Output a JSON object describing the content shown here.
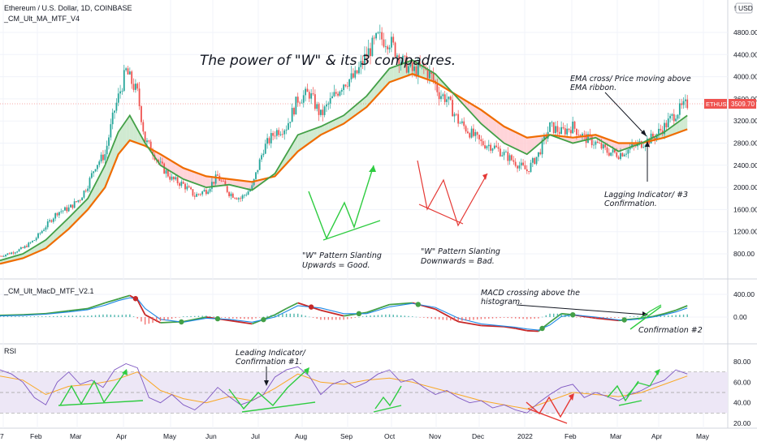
{
  "chart_data": [
    {
      "type": "candlestick",
      "pane": "price",
      "symbol_header": "Ethereum / U.S. Dollar, 1D, COINBASE",
      "indicator_label": "_CM_Ult_MA_MTF_V4",
      "title": "The power of \"W\" & its 3 compadres.",
      "yticks": [
        "800.00",
        "1200.00",
        "1600.00",
        "2000.00",
        "2400.00",
        "2800.00",
        "3200.00",
        "3600.00",
        "4000.00",
        "4400.00",
        "4800.00"
      ],
      "ylim": [
        500,
        5000
      ],
      "yaxis_top_label": "5",
      "currency_badge": "USD",
      "last_price": "3509.70",
      "price_tag_label": "ETHUSD",
      "series": [
        {
          "name": "",
          "kind": "price",
          "color": "#26a69a",
          "x": [
            0,
            6,
            12,
            18,
            24,
            30,
            36,
            42,
            46,
            50,
            55,
            60,
            66,
            72,
            76,
            80,
            84,
            90,
            96,
            102,
            108,
            114,
            120,
            126,
            132,
            138,
            144,
            150,
            156,
            162,
            168,
            174,
            180,
            186,
            192,
            198,
            204,
            210,
            216,
            222,
            226,
            230,
            234,
            240,
            246,
            252,
            258,
            264,
            270,
            276,
            282,
            288,
            294,
            300,
            306,
            312,
            318,
            324,
            330,
            336,
            342,
            348,
            354,
            360
          ],
          "y": [
            760,
            820,
            900,
            1050,
            1300,
            1550,
            1620,
            1800,
            2050,
            2400,
            2600,
            3400,
            4100,
            3700,
            2850,
            2650,
            2400,
            2150,
            2050,
            1850,
            1950,
            2200,
            1900,
            1800,
            2000,
            2700,
            3000,
            3100,
            3600,
            3700,
            3300,
            3600,
            3900,
            4000,
            4400,
            4700,
            4650,
            4300,
            4100,
            4150,
            4000,
            3700,
            3600,
            3200,
            3000,
            2800,
            2750,
            2600,
            2450,
            2300,
            2600,
            3100,
            3000,
            3100,
            2900,
            2800,
            2650,
            2600,
            2700,
            2800,
            2900,
            3100,
            3350,
            3509.7
          ]
        },
        {
          "name": "",
          "kind": "fast-ma",
          "color": "#43a047",
          "x": [
            0,
            12,
            24,
            36,
            46,
            55,
            62,
            68,
            76,
            84,
            96,
            108,
            120,
            132,
            144,
            156,
            168,
            180,
            192,
            204,
            216,
            228,
            240,
            252,
            264,
            276,
            288,
            300,
            312,
            324,
            336,
            348,
            360
          ],
          "y": [
            680,
            800,
            1050,
            1450,
            1800,
            2400,
            3000,
            3300,
            2800,
            2400,
            2150,
            2000,
            2050,
            1950,
            2250,
            2950,
            3100,
            3300,
            3650,
            4150,
            4300,
            4050,
            3600,
            3150,
            2800,
            2600,
            2950,
            2800,
            2900,
            2650,
            2800,
            3000,
            3300
          ]
        },
        {
          "name": "",
          "kind": "slow-ma",
          "color": "#ef6c00",
          "x": [
            0,
            12,
            24,
            36,
            46,
            55,
            62,
            68,
            76,
            84,
            96,
            108,
            120,
            132,
            144,
            156,
            168,
            180,
            192,
            204,
            216,
            228,
            240,
            252,
            264,
            276,
            288,
            300,
            312,
            324,
            336,
            348,
            360
          ],
          "y": [
            620,
            720,
            900,
            1250,
            1600,
            2000,
            2600,
            2850,
            2750,
            2600,
            2350,
            2200,
            2150,
            2100,
            2200,
            2650,
            2950,
            3150,
            3450,
            3900,
            4050,
            3900,
            3650,
            3400,
            3100,
            2900,
            2950,
            2900,
            2950,
            2800,
            2800,
            2900,
            3050
          ]
        }
      ]
    },
    {
      "type": "line",
      "pane": "macd",
      "indicator_label": "_CM_Ult_MacD_MTF_V2.1",
      "yticks": [
        "400.00",
        "0.00"
      ],
      "ylim": [
        -340,
        480
      ],
      "series": [
        {
          "name": "",
          "kind": "macd",
          "x": [
            0,
            12,
            24,
            36,
            46,
            55,
            62,
            68,
            72,
            76,
            84,
            96,
            108,
            120,
            132,
            144,
            150,
            156,
            168,
            180,
            192,
            204,
            216,
            228,
            240,
            252,
            264,
            270,
            276,
            282,
            288,
            294,
            300,
            312,
            324,
            330,
            336,
            342,
            348,
            354,
            360
          ],
          "y": [
            30,
            40,
            60,
            110,
            150,
            250,
            320,
            380,
            300,
            40,
            -100,
            -80,
            0,
            -60,
            -120,
            40,
            150,
            250,
            120,
            20,
            80,
            220,
            250,
            140,
            -80,
            -150,
            -170,
            -200,
            -240,
            -250,
            -90,
            60,
            40,
            -20,
            -60,
            -40,
            -20,
            10,
            60,
            120,
            200
          ]
        },
        {
          "name": "",
          "kind": "signal",
          "x": [
            0,
            12,
            24,
            36,
            46,
            55,
            62,
            68,
            72,
            76,
            84,
            96,
            108,
            120,
            132,
            144,
            150,
            156,
            168,
            180,
            192,
            204,
            216,
            228,
            240,
            252,
            264,
            270,
            276,
            282,
            288,
            294,
            300,
            312,
            324,
            330,
            336,
            342,
            348,
            354,
            360
          ],
          "y": [
            20,
            30,
            50,
            90,
            130,
            210,
            290,
            340,
            320,
            150,
            -40,
            -90,
            -20,
            -40,
            -90,
            0,
            100,
            200,
            160,
            60,
            60,
            180,
            240,
            170,
            -20,
            -120,
            -160,
            -180,
            -210,
            -230,
            -140,
            10,
            40,
            0,
            -50,
            -50,
            -30,
            0,
            40,
            90,
            160
          ]
        }
      ]
    },
    {
      "type": "line",
      "pane": "rsi",
      "indicator_label": "RSI",
      "yticks": [
        "80.00",
        "60.00",
        "40.00",
        "20.00"
      ],
      "ylim": [
        14,
        92
      ],
      "bands": [
        30,
        50,
        70
      ],
      "series": [
        {
          "name": "",
          "kind": "rsi",
          "x": [
            0,
            6,
            12,
            18,
            24,
            30,
            36,
            42,
            48,
            54,
            60,
            66,
            72,
            78,
            84,
            90,
            96,
            102,
            108,
            114,
            120,
            126,
            132,
            138,
            144,
            150,
            156,
            162,
            168,
            174,
            180,
            186,
            192,
            198,
            204,
            210,
            216,
            222,
            228,
            234,
            240,
            246,
            252,
            258,
            264,
            270,
            276,
            282,
            288,
            294,
            300,
            306,
            312,
            318,
            324,
            330,
            336,
            342,
            348,
            354,
            360
          ],
          "y": [
            72,
            68,
            60,
            45,
            38,
            60,
            70,
            58,
            62,
            55,
            72,
            78,
            74,
            45,
            40,
            48,
            38,
            33,
            42,
            55,
            46,
            38,
            42,
            48,
            65,
            72,
            75,
            66,
            48,
            58,
            62,
            55,
            60,
            68,
            72,
            60,
            63,
            55,
            48,
            52,
            45,
            40,
            42,
            35,
            38,
            33,
            30,
            40,
            48,
            55,
            58,
            45,
            50,
            46,
            42,
            48,
            52,
            58,
            62,
            72,
            68
          ]
        },
        {
          "name": "",
          "kind": "rsi-ma",
          "x": [
            0,
            12,
            24,
            36,
            48,
            60,
            72,
            84,
            96,
            108,
            120,
            132,
            144,
            156,
            168,
            180,
            192,
            204,
            216,
            228,
            240,
            252,
            264,
            276,
            288,
            300,
            312,
            324,
            336,
            348,
            360
          ],
          "y": [
            66,
            62,
            48,
            56,
            58,
            62,
            70,
            52,
            44,
            40,
            46,
            42,
            54,
            68,
            60,
            58,
            62,
            64,
            60,
            54,
            48,
            42,
            38,
            34,
            42,
            50,
            48,
            46,
            50,
            58,
            66
          ]
        }
      ]
    }
  ],
  "x_axis": {
    "tick_labels": [
      "7",
      "Feb",
      "Mar",
      "Apr",
      "May",
      "Jun",
      "Jul",
      "Aug",
      "Sep",
      "Oct",
      "Nov",
      "Dec",
      "2022",
      "Feb",
      "Mar",
      "Apr",
      "May"
    ]
  },
  "annotations": {
    "pattern_up": "\"W\" Pattern Slanting\nUpwards = Good.",
    "pattern_down": "\"W\" Pattern Slanting\nDownwards = Bad.",
    "ema_cross": "EMA cross/ Price moving above\nEMA ribbon.",
    "lagging": "Lagging Indicator/ #3\nConfirmation.",
    "macd_cross": "MACD crossing above the\nhistogram.",
    "confirmation2": "Confirmation #2",
    "leading": "Leading Indicator/\nConfirmation #1."
  },
  "colors": {
    "up_candle": "#26a69a",
    "down_candle": "#ef5350",
    "fast_ma": "#43a047",
    "slow_ma": "#ef6c00",
    "bull_fill": "#c8e6c9",
    "bear_fill": "#ffcdd2",
    "macd_line": "#1e88e5",
    "rsi_line": "#7e57c2",
    "rsi_ma": "#f9a825",
    "rsi_band": "#ede7f6",
    "annotation_green": "#2ecc40",
    "annotation_red": "#e53935",
    "price_tag": "#ef5350"
  }
}
